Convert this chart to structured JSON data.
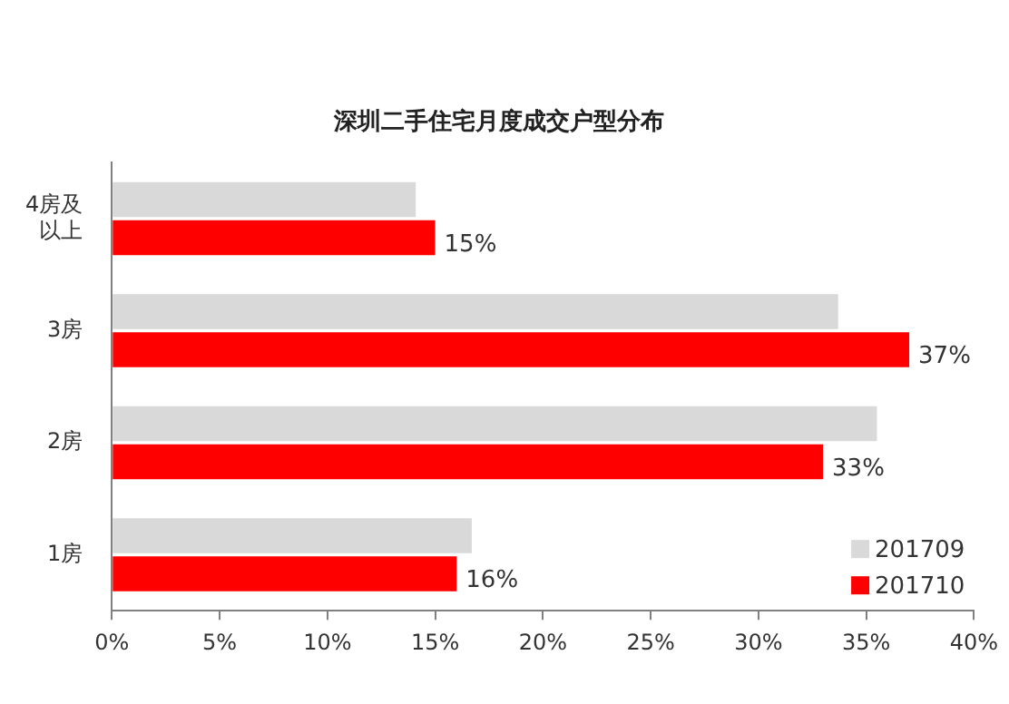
{
  "chart_data": {
    "type": "bar",
    "orientation": "horizontal",
    "title": "深圳二手住宅月度成交户型分布",
    "categories": [
      "4房及以上",
      "3房",
      "2房",
      "1房"
    ],
    "series": [
      {
        "name": "201709",
        "color": "#d9d9d9",
        "values": [
          14.1,
          33.7,
          35.5,
          16.7
        ]
      },
      {
        "name": "201710",
        "color": "#ff0000",
        "values": [
          15,
          37,
          33,
          16
        ],
        "value_labels": [
          "15%",
          "37%",
          "33%",
          "16%"
        ]
      }
    ],
    "xlim": [
      0,
      40
    ],
    "xticks": [
      {
        "value": 0,
        "label": "0%"
      },
      {
        "value": 5,
        "label": "5%"
      },
      {
        "value": 10,
        "label": "10%"
      },
      {
        "value": 15,
        "label": "15%"
      },
      {
        "value": 20,
        "label": "20%"
      },
      {
        "value": 25,
        "label": "25%"
      },
      {
        "value": 30,
        "label": "30%"
      },
      {
        "value": 35,
        "label": "35%"
      },
      {
        "value": 40,
        "label": "40%"
      }
    ],
    "grid": false,
    "legend": "bottom right"
  }
}
